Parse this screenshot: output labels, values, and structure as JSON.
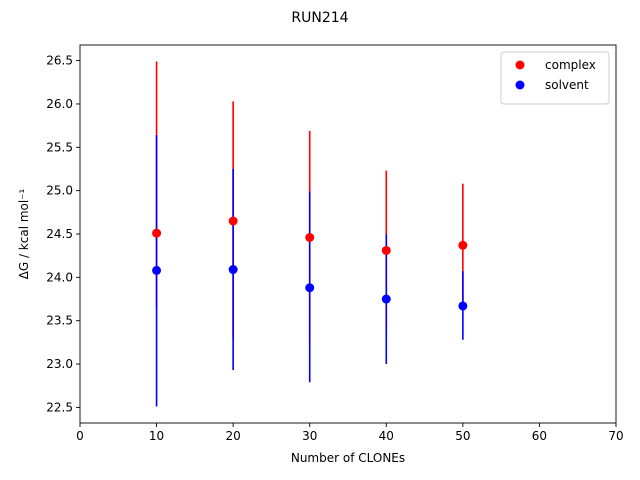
{
  "chart_data": {
    "type": "scatter",
    "title": "RUN214",
    "xlabel": "Number of CLONEs",
    "ylabel": "ΔG / kcal mol⁻¹",
    "xlim": [
      0,
      70
    ],
    "ylim": [
      22.32,
      26.68
    ],
    "xticks": [
      0,
      10,
      20,
      30,
      40,
      50,
      60,
      70
    ],
    "xtick_labels": [
      "0",
      "10",
      "20",
      "30",
      "40",
      "50",
      "60",
      "70"
    ],
    "yticks": [
      22.5,
      23.0,
      23.5,
      24.0,
      24.5,
      25.0,
      25.5,
      26.0,
      26.5
    ],
    "ytick_labels": [
      "22.5",
      "23.0",
      "23.5",
      "24.0",
      "24.5",
      "25.0",
      "25.5",
      "26.0",
      "26.5"
    ],
    "grid": false,
    "legend_position": "top-right",
    "series": [
      {
        "name": "complex",
        "color": "#ff0000",
        "x": [
          10,
          20,
          30,
          40,
          50
        ],
        "y": [
          24.51,
          24.65,
          24.46,
          24.31,
          24.37
        ],
        "err_low": [
          23.65,
          23.29,
          23.24,
          23.39,
          23.66
        ],
        "err_high": [
          26.49,
          26.03,
          25.69,
          25.23,
          25.08
        ]
      },
      {
        "name": "solvent",
        "color": "#0000ff",
        "x": [
          10,
          20,
          30,
          40,
          50
        ],
        "y": [
          24.08,
          24.09,
          23.88,
          23.75,
          23.67
        ],
        "err_low": [
          22.51,
          22.93,
          22.79,
          23.0,
          23.28
        ],
        "err_high": [
          25.64,
          25.25,
          24.99,
          24.5,
          24.07
        ]
      }
    ]
  }
}
